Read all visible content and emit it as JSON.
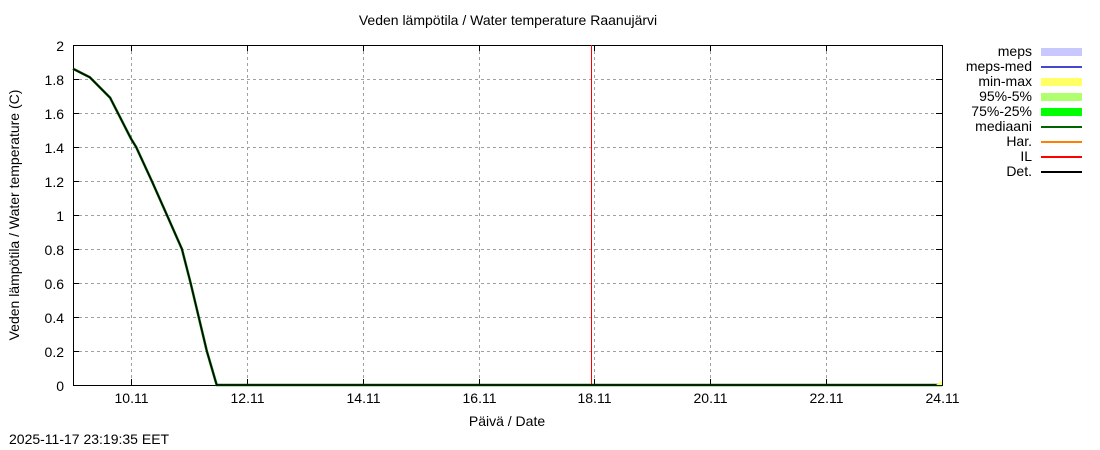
{
  "title": "Veden lämpötila / Water temperature Raanujärvi",
  "xlabel": "Päivä / Date",
  "ylabel": "Veden lämpötila / Water temperature (C)",
  "timestamp": "2025-11-17 23:19:35 EET",
  "y_ticks": [
    "2",
    "1.8",
    "1.6",
    "1.4",
    "1.2",
    "1",
    "0.8",
    "0.6",
    "0.4",
    "0.2",
    "0"
  ],
  "x_ticks": [
    "10.11",
    "12.11",
    "14.11",
    "16.11",
    "18.11",
    "20.11",
    "22.11",
    "24.11"
  ],
  "legend": [
    {
      "label": "meps",
      "color": "#c8c8ff",
      "style": "band"
    },
    {
      "label": "meps-med",
      "color": "#4646d2",
      "style": "line"
    },
    {
      "label": "min-max",
      "color": "#ffff66",
      "style": "band"
    },
    {
      "label": "95%-5%",
      "color": "#b0ff6e",
      "style": "band"
    },
    {
      "label": "75%-25%",
      "color": "#00ff00",
      "style": "band"
    },
    {
      "label": "mediaani",
      "color": "#006400",
      "style": "line"
    },
    {
      "label": "Har.",
      "color": "#ff8000",
      "style": "line"
    },
    {
      "label": "IL",
      "color": "#ff0000",
      "style": "line"
    },
    {
      "label": "Det.",
      "color": "#000000",
      "style": "line"
    }
  ],
  "chart_data": {
    "type": "line",
    "title": "Veden lämpötila / Water temperature Raanujärvi",
    "xlabel": "Päivä / Date",
    "ylabel": "Veden lämpötila / Water temperature (C)",
    "xlim": [
      "09.11 00:00",
      "24.11 00:00"
    ],
    "ylim": [
      0,
      2
    ],
    "grid": true,
    "legend_position": "right",
    "x_tick_labels": [
      "10.11",
      "12.11",
      "14.11",
      "16.11",
      "18.11",
      "20.11",
      "22.11",
      "24.11"
    ],
    "y_tick_labels": [
      "0",
      "0.2",
      "0.4",
      "0.6",
      "0.8",
      "1",
      "1.2",
      "1.4",
      "1.6",
      "1.8",
      "2"
    ],
    "series": [
      {
        "name": "Det.",
        "color": "#000000",
        "x_days_from_0911": [
          0.0,
          0.29,
          0.64,
          1.0,
          1.09,
          1.36,
          1.62,
          1.88,
          2.03,
          2.17,
          2.31,
          2.48,
          15.0
        ],
        "values": [
          1.86,
          1.81,
          1.69,
          1.45,
          1.4,
          1.2,
          1.0,
          0.8,
          0.6,
          0.4,
          0.2,
          0.0,
          0.0
        ]
      },
      {
        "name": "mediaani",
        "color": "#006400",
        "x_days_from_0911": [
          0.0,
          0.29,
          0.64,
          1.0,
          1.09,
          1.36,
          1.62,
          1.88,
          2.03,
          2.17,
          2.31,
          2.48,
          15.0
        ],
        "values": [
          1.86,
          1.81,
          1.69,
          1.45,
          1.4,
          1.2,
          1.0,
          0.8,
          0.6,
          0.4,
          0.2,
          0.0,
          0.0
        ]
      },
      {
        "name": "IL",
        "color": "#ff0000",
        "type": "vline",
        "x": "17.11 ~23:20"
      }
    ]
  }
}
